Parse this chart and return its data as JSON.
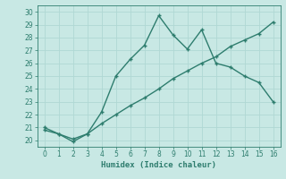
{
  "xlabel": "Humidex (Indice chaleur)",
  "xlim": [
    -0.5,
    16.5
  ],
  "ylim": [
    19.5,
    30.5
  ],
  "xticks": [
    0,
    1,
    2,
    3,
    4,
    5,
    6,
    7,
    8,
    9,
    10,
    11,
    12,
    13,
    14,
    15,
    16
  ],
  "yticks": [
    20,
    21,
    22,
    23,
    24,
    25,
    26,
    27,
    28,
    29,
    30
  ],
  "line1_x": [
    0,
    1,
    2,
    3,
    4,
    5,
    6,
    7,
    8,
    9,
    10,
    11,
    12,
    13,
    14,
    15,
    16
  ],
  "line1_y": [
    21.0,
    20.5,
    19.9,
    20.5,
    22.2,
    25.0,
    26.3,
    27.4,
    29.7,
    28.2,
    27.1,
    28.6,
    26.0,
    25.7,
    25.0,
    24.5,
    23.0
  ],
  "line2_x": [
    0,
    1,
    2,
    3,
    4,
    5,
    6,
    7,
    8,
    9,
    10,
    11,
    12,
    13,
    14,
    15,
    16
  ],
  "line2_y": [
    20.8,
    20.5,
    20.1,
    20.5,
    21.3,
    22.0,
    22.7,
    23.3,
    24.0,
    24.8,
    25.4,
    26.0,
    26.5,
    27.3,
    27.8,
    28.3,
    29.2
  ],
  "line_color": "#2e7d6e",
  "bg_color": "#c8e8e4",
  "grid_color": "#b0d8d4",
  "spine_color": "#2e7d6e",
  "tick_color": "#2e7d6e",
  "label_color": "#2e7d6e",
  "markersize": 3,
  "linewidth": 1.0
}
